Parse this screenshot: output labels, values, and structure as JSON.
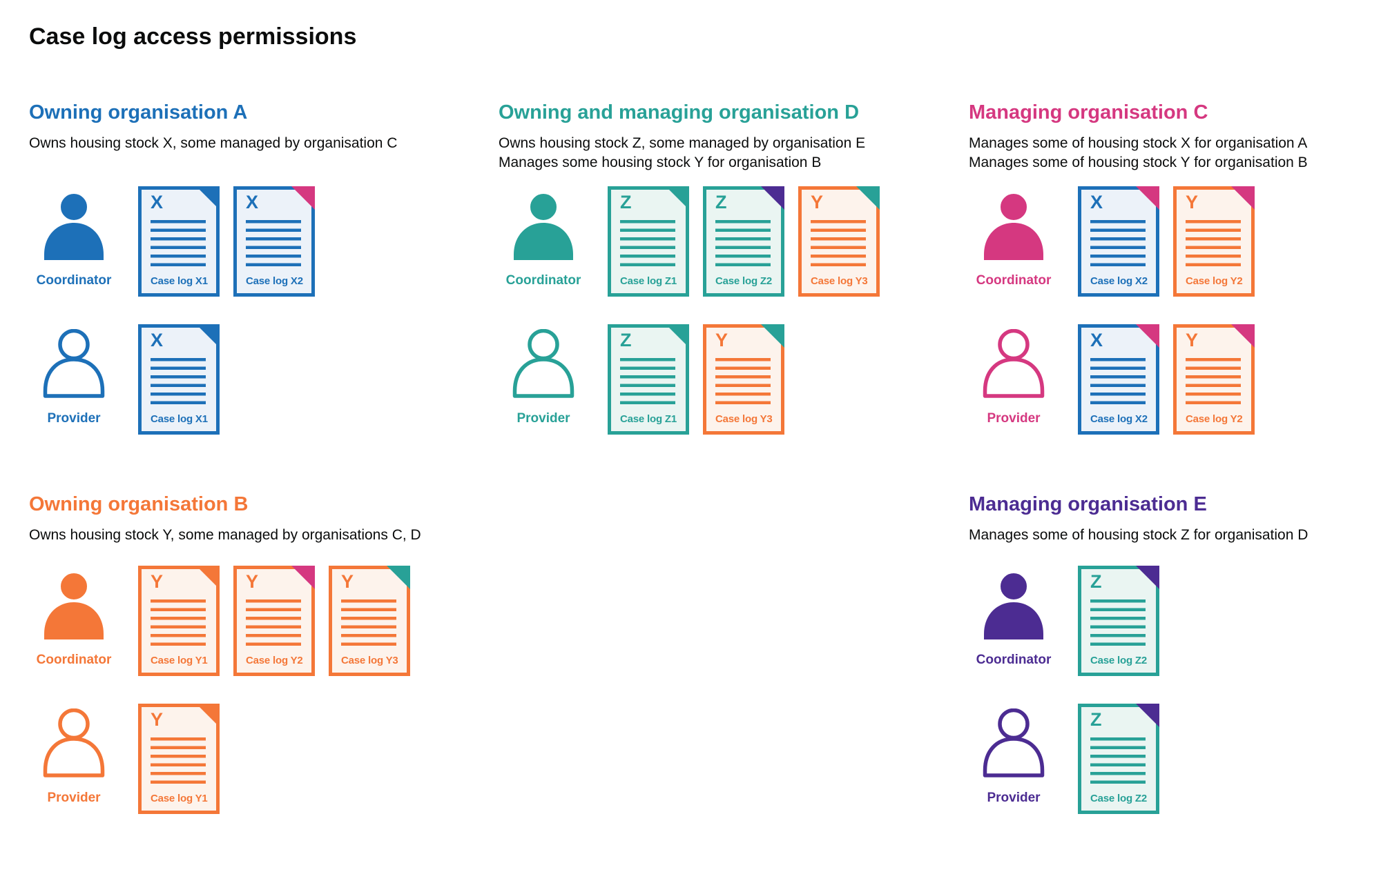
{
  "title": "Case log access permissions",
  "palette": {
    "blue": "#1d70b8",
    "teal": "#28a197",
    "orange": "#f47738",
    "pink": "#d53880",
    "purple": "#4c2c92",
    "blue_bg": "#ecf2f9",
    "teal_bg": "#eaf5f2",
    "orange_bg": "#fdf3ec",
    "text": "#0b0c0c",
    "background": "#ffffff"
  },
  "icons": {
    "coordinator": "person-filled-icon",
    "provider": "person-outline-icon",
    "case_log": "document-icon",
    "fold": "folded-corner"
  },
  "sections": [
    {
      "id": "org-a",
      "color": "blue",
      "heading": "Owning organisation A",
      "description": [
        "Owns housing stock X, some managed by organisation C"
      ],
      "rows": [
        {
          "role": "Coordinator",
          "person": "filled",
          "docs": [
            {
              "letter": "X",
              "label": "Case log X1",
              "doc_color": "blue",
              "fold_color": "blue"
            },
            {
              "letter": "X",
              "label": "Case log X2",
              "doc_color": "blue",
              "fold_color": "pink"
            }
          ]
        },
        {
          "role": "Provider",
          "person": "outline",
          "docs": [
            {
              "letter": "X",
              "label": "Case log X1",
              "doc_color": "blue",
              "fold_color": "blue"
            }
          ]
        }
      ]
    },
    {
      "id": "org-d",
      "color": "teal",
      "heading": "Owning and managing organisation D",
      "description": [
        "Owns housing stock Z, some managed by organisation E",
        "Manages some housing stock Y for organisation B"
      ],
      "rows": [
        {
          "role": "Coordinator",
          "person": "filled",
          "docs": [
            {
              "letter": "Z",
              "label": "Case log Z1",
              "doc_color": "teal",
              "fold_color": "teal"
            },
            {
              "letter": "Z",
              "label": "Case log Z2",
              "doc_color": "teal",
              "fold_color": "purple"
            },
            {
              "letter": "Y",
              "label": "Case log Y3",
              "doc_color": "orange",
              "fold_color": "teal"
            }
          ]
        },
        {
          "role": "Provider",
          "person": "outline",
          "docs": [
            {
              "letter": "Z",
              "label": "Case log Z1",
              "doc_color": "teal",
              "fold_color": "teal"
            },
            {
              "letter": "Y",
              "label": "Case log Y3",
              "doc_color": "orange",
              "fold_color": "teal"
            }
          ]
        }
      ]
    },
    {
      "id": "org-c",
      "color": "pink",
      "heading": "Managing organisation C",
      "description": [
        "Manages some of housing stock X for organisation A",
        "Manages some of housing stock Y for organisation B"
      ],
      "rows": [
        {
          "role": "Coordinator",
          "person": "filled",
          "docs": [
            {
              "letter": "X",
              "label": "Case log X2",
              "doc_color": "blue",
              "fold_color": "pink"
            },
            {
              "letter": "Y",
              "label": "Case log Y2",
              "doc_color": "orange",
              "fold_color": "pink"
            }
          ]
        },
        {
          "role": "Provider",
          "person": "outline",
          "docs": [
            {
              "letter": "X",
              "label": "Case log X2",
              "doc_color": "blue",
              "fold_color": "pink"
            },
            {
              "letter": "Y",
              "label": "Case log Y2",
              "doc_color": "orange",
              "fold_color": "pink"
            }
          ]
        }
      ]
    },
    {
      "id": "org-b",
      "color": "orange",
      "heading": "Owning organisation B",
      "description": [
        "Owns housing stock Y, some managed by organisations C, D"
      ],
      "rows": [
        {
          "role": "Coordinator",
          "person": "filled",
          "docs": [
            {
              "letter": "Y",
              "label": "Case log Y1",
              "doc_color": "orange",
              "fold_color": "orange"
            },
            {
              "letter": "Y",
              "label": "Case log Y2",
              "doc_color": "orange",
              "fold_color": "pink"
            },
            {
              "letter": "Y",
              "label": "Case log Y3",
              "doc_color": "orange",
              "fold_color": "teal"
            }
          ]
        },
        {
          "role": "Provider",
          "person": "outline",
          "docs": [
            {
              "letter": "Y",
              "label": "Case log Y1",
              "doc_color": "orange",
              "fold_color": "orange"
            }
          ]
        }
      ]
    },
    {
      "id": "org-e",
      "color": "purple",
      "heading": "Managing organisation E",
      "description": [
        "Manages some of housing stock Z for organisation D"
      ],
      "rows": [
        {
          "role": "Coordinator",
          "person": "filled",
          "docs": [
            {
              "letter": "Z",
              "label": "Case log Z2",
              "doc_color": "teal",
              "fold_color": "purple"
            }
          ]
        },
        {
          "role": "Provider",
          "person": "outline",
          "docs": [
            {
              "letter": "Z",
              "label": "Case log Z2",
              "doc_color": "teal",
              "fold_color": "purple"
            }
          ]
        }
      ]
    }
  ]
}
